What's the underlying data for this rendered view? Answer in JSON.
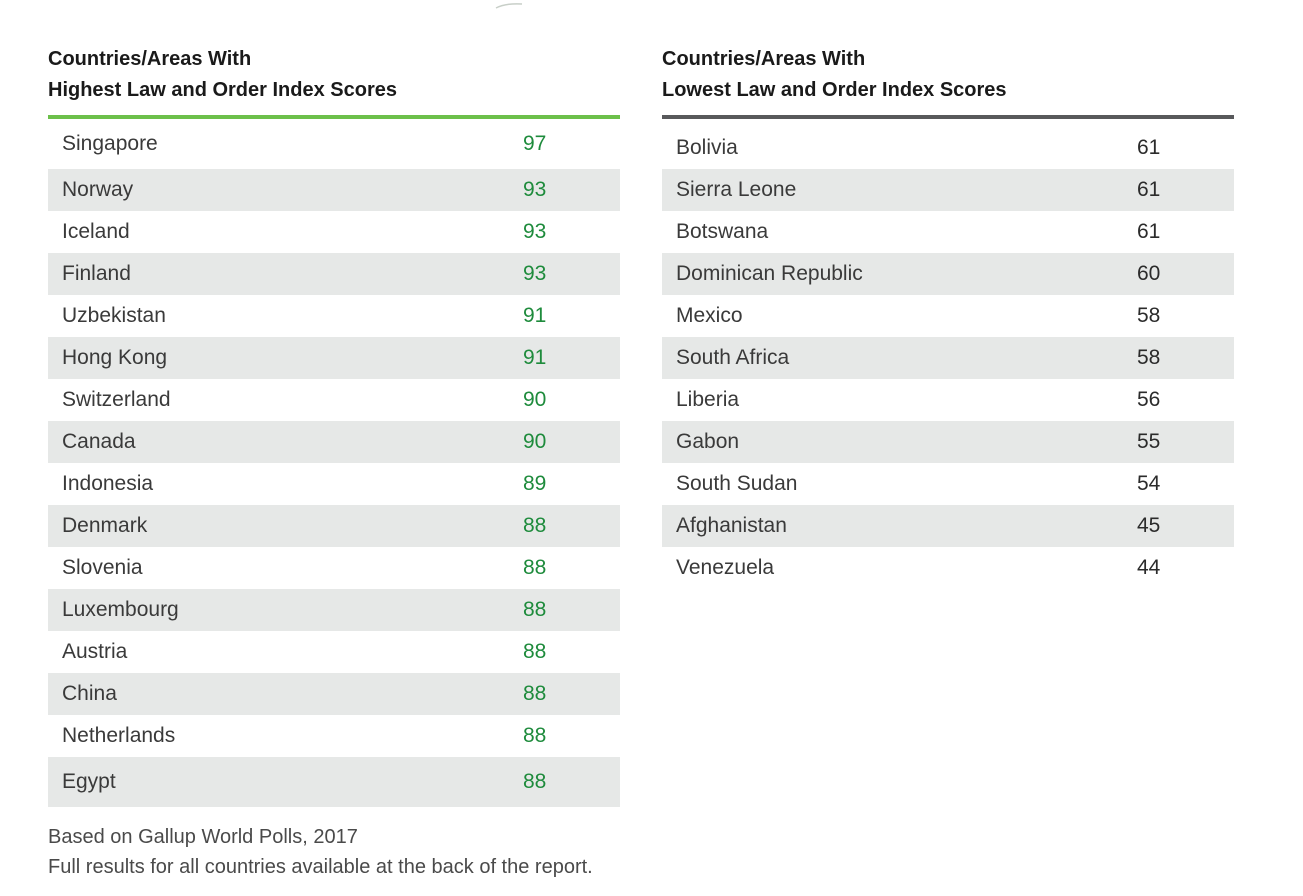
{
  "highest": {
    "title_line1": "Countries/Areas With",
    "title_line2": "Highest Law and Order Index Scores",
    "rows": [
      {
        "country": "Singapore",
        "score": "97"
      },
      {
        "country": "Norway",
        "score": "93"
      },
      {
        "country": "Iceland",
        "score": "93"
      },
      {
        "country": "Finland",
        "score": "93"
      },
      {
        "country": "Uzbekistan",
        "score": "91"
      },
      {
        "country": "Hong Kong",
        "score": "91"
      },
      {
        "country": "Switzerland",
        "score": "90"
      },
      {
        "country": "Canada",
        "score": "90"
      },
      {
        "country": "Indonesia",
        "score": "89"
      },
      {
        "country": "Denmark",
        "score": "88"
      },
      {
        "country": "Slovenia",
        "score": "88"
      },
      {
        "country": "Luxembourg",
        "score": "88"
      },
      {
        "country": "Austria",
        "score": "88"
      },
      {
        "country": "China",
        "score": "88"
      },
      {
        "country": "Netherlands",
        "score": "88"
      },
      {
        "country": "Egypt",
        "score": "88"
      }
    ],
    "accent_color": "#6cc04a",
    "score_color": "#1e8b3c"
  },
  "lowest": {
    "title_line1": "Countries/Areas With",
    "title_line2": "Lowest Law and Order Index Scores",
    "rows": [
      {
        "country": "Bolivia",
        "score": "61"
      },
      {
        "country": "Sierra Leone",
        "score": "61"
      },
      {
        "country": "Botswana",
        "score": "61"
      },
      {
        "country": "Dominican Republic",
        "score": "60"
      },
      {
        "country": "Mexico",
        "score": "58"
      },
      {
        "country": "South Africa",
        "score": "58"
      },
      {
        "country": "Liberia",
        "score": "56"
      },
      {
        "country": "Gabon",
        "score": "55"
      },
      {
        "country": "South Sudan",
        "score": "54"
      },
      {
        "country": "Afghanistan",
        "score": "45"
      },
      {
        "country": "Venezuela",
        "score": "44"
      }
    ],
    "accent_color": "#58595b"
  },
  "footnotes": {
    "source": "Based on Gallup World Polls, 2017",
    "full_results": "Full results for all countries available at the back of the report."
  },
  "row_shade_color": "#e6e8e7"
}
